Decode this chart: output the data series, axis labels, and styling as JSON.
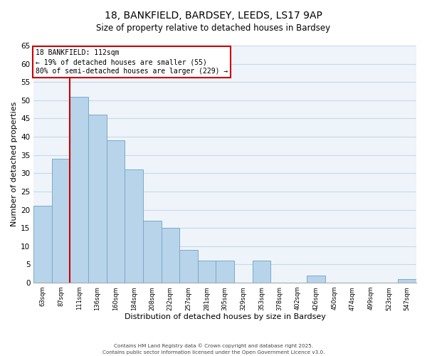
{
  "title_line1": "18, BANKFIELD, BARDSEY, LEEDS, LS17 9AP",
  "title_line2": "Size of property relative to detached houses in Bardsey",
  "xlabel": "Distribution of detached houses by size in Bardsey",
  "ylabel": "Number of detached properties",
  "bin_labels": [
    "63sqm",
    "87sqm",
    "111sqm",
    "136sqm",
    "160sqm",
    "184sqm",
    "208sqm",
    "232sqm",
    "257sqm",
    "281sqm",
    "305sqm",
    "329sqm",
    "353sqm",
    "378sqm",
    "402sqm",
    "426sqm",
    "450sqm",
    "474sqm",
    "499sqm",
    "523sqm",
    "547sqm"
  ],
  "bar_values": [
    21,
    34,
    51,
    46,
    39,
    31,
    17,
    15,
    9,
    6,
    6,
    0,
    6,
    0,
    0,
    2,
    0,
    0,
    0,
    0,
    1
  ],
  "bar_color": "#b8d4ea",
  "bar_edge_color": "#7aaaca",
  "property_bar_index": 2,
  "annotation_title": "18 BANKFIELD: 112sqm",
  "annotation_line2": "← 19% of detached houses are smaller (55)",
  "annotation_line3": "80% of semi-detached houses are larger (229) →",
  "annotation_box_color": "#ffffff",
  "annotation_box_edge_color": "#cc0000",
  "property_line_color": "#cc0000",
  "ylim": [
    0,
    65
  ],
  "yticks": [
    0,
    5,
    10,
    15,
    20,
    25,
    30,
    35,
    40,
    45,
    50,
    55,
    60,
    65
  ],
  "background_color": "#ffffff",
  "plot_bg_color": "#eef4fa",
  "grid_color": "#c8d8e8",
  "footer_line1": "Contains HM Land Registry data © Crown copyright and database right 2025.",
  "footer_line2": "Contains public sector information licensed under the Open Government Licence v3.0."
}
